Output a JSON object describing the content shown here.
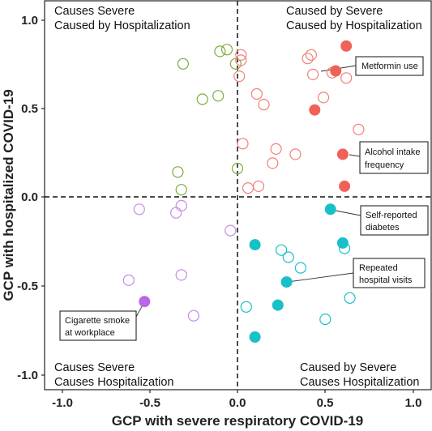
{
  "chart_data": {
    "type": "scatter",
    "xlabel": "GCP with severe respiratory COVID-19",
    "ylabel": "GCP with hospitalized COVID-19",
    "xlim": [
      -1.05,
      1.05
    ],
    "ylim": [
      -1.05,
      1.05
    ],
    "x_ticks": [
      "-1.0",
      "-0.5",
      "0.0",
      "0.5",
      "1.0"
    ],
    "y_ticks": [
      "1.0",
      "0.5",
      "0.0",
      "-0.5",
      "-1.0"
    ],
    "grid": false,
    "reference_lines": {
      "x": 0,
      "y": 0,
      "style": "dashed"
    },
    "quadrant_labels": [
      {
        "lines": [
          "Causes Severe",
          "Caused by Hospitalization"
        ],
        "position": "top-left"
      },
      {
        "lines": [
          "Caused by Severe",
          "Caused by Hospitalization"
        ],
        "position": "top-right"
      },
      {
        "lines": [
          "Causes Severe",
          "Causes Hospitalization"
        ],
        "position": "bottom-left"
      },
      {
        "lines": [
          "Caused by Severe",
          "Causes Hospitalization"
        ],
        "position": "bottom-right"
      }
    ],
    "colors": {
      "green": "#7dac3a",
      "salmon": "#f08078",
      "red": "#f06258",
      "cyan": "#18c0c8",
      "violet": "#c68ae6",
      "purple": "#bb66e6"
    },
    "series": [
      {
        "color": "green",
        "points": [
          {
            "x": -0.31,
            "y": 0.75,
            "filled": false
          },
          {
            "x": -0.1,
            "y": 0.82,
            "filled": false
          },
          {
            "x": -0.06,
            "y": 0.83,
            "filled": false
          },
          {
            "x": -0.01,
            "y": 0.75,
            "filled": false
          },
          {
            "x": -0.2,
            "y": 0.55,
            "filled": false
          },
          {
            "x": -0.11,
            "y": 0.57,
            "filled": false
          },
          {
            "x": -0.34,
            "y": 0.14,
            "filled": false
          },
          {
            "x": -0.32,
            "y": 0.04,
            "filled": false
          },
          {
            "x": 0.0,
            "y": 0.16,
            "filled": false
          }
        ]
      },
      {
        "color": "salmon",
        "points": [
          {
            "x": 0.02,
            "y": 0.8,
            "filled": false
          },
          {
            "x": 0.02,
            "y": 0.77,
            "filled": false
          },
          {
            "x": 0.01,
            "y": 0.68,
            "filled": false
          },
          {
            "x": 0.4,
            "y": 0.78,
            "filled": false
          },
          {
            "x": 0.42,
            "y": 0.8,
            "filled": false
          },
          {
            "x": 0.43,
            "y": 0.69,
            "filled": false
          },
          {
            "x": 0.54,
            "y": 0.7,
            "filled": false
          },
          {
            "x": 0.62,
            "y": 0.67,
            "filled": false
          },
          {
            "x": 0.11,
            "y": 0.58,
            "filled": false
          },
          {
            "x": 0.15,
            "y": 0.52,
            "filled": false
          },
          {
            "x": 0.49,
            "y": 0.56,
            "filled": false
          },
          {
            "x": 0.69,
            "y": 0.38,
            "filled": false
          },
          {
            "x": 0.03,
            "y": 0.3,
            "filled": false
          },
          {
            "x": 0.22,
            "y": 0.27,
            "filled": false
          },
          {
            "x": 0.33,
            "y": 0.24,
            "filled": false
          },
          {
            "x": 0.2,
            "y": 0.19,
            "filled": false
          },
          {
            "x": 0.06,
            "y": 0.05,
            "filled": false
          },
          {
            "x": 0.12,
            "y": 0.06,
            "filled": false
          }
        ]
      },
      {
        "color": "red",
        "points": [
          {
            "x": 0.62,
            "y": 0.85,
            "filled": true
          },
          {
            "x": 0.56,
            "y": 0.71,
            "filled": true,
            "label": "Metformin use"
          },
          {
            "x": 0.44,
            "y": 0.49,
            "filled": true
          },
          {
            "x": 0.6,
            "y": 0.24,
            "filled": true,
            "label": "Alcohol intake frequency"
          },
          {
            "x": 0.61,
            "y": 0.06,
            "filled": true
          }
        ]
      },
      {
        "color": "cyan",
        "points": [
          {
            "x": 0.53,
            "y": -0.07,
            "filled": true,
            "label": "Self-reported diabetes"
          },
          {
            "x": 0.6,
            "y": -0.26,
            "filled": true
          },
          {
            "x": 0.1,
            "y": -0.27,
            "filled": true
          },
          {
            "x": 0.28,
            "y": -0.48,
            "filled": true,
            "label": "Repeated hospital visits"
          },
          {
            "x": 0.23,
            "y": -0.61,
            "filled": true
          },
          {
            "x": 0.1,
            "y": -0.79,
            "filled": true
          },
          {
            "x": 0.61,
            "y": -0.29,
            "filled": false
          },
          {
            "x": 0.25,
            "y": -0.3,
            "filled": false
          },
          {
            "x": 0.29,
            "y": -0.34,
            "filled": false
          },
          {
            "x": 0.36,
            "y": -0.4,
            "filled": false
          },
          {
            "x": 0.64,
            "y": -0.57,
            "filled": false
          },
          {
            "x": 0.05,
            "y": -0.62,
            "filled": false
          },
          {
            "x": 0.5,
            "y": -0.69,
            "filled": false
          }
        ]
      },
      {
        "color": "violet",
        "points": [
          {
            "x": -0.56,
            "y": -0.07,
            "filled": false
          },
          {
            "x": -0.35,
            "y": -0.09,
            "filled": false
          },
          {
            "x": -0.32,
            "y": -0.05,
            "filled": false
          },
          {
            "x": -0.04,
            "y": -0.19,
            "filled": false
          },
          {
            "x": -0.62,
            "y": -0.47,
            "filled": false
          },
          {
            "x": -0.32,
            "y": -0.44,
            "filled": false
          },
          {
            "x": -0.25,
            "y": -0.67,
            "filled": false
          }
        ]
      },
      {
        "color": "purple",
        "points": [
          {
            "x": -0.53,
            "y": -0.59,
            "filled": true,
            "label": "Cigarette smoke at workplace"
          }
        ]
      }
    ],
    "annotations": [
      {
        "lines": [
          "Metformin use"
        ]
      },
      {
        "lines": [
          "Alcohol intake",
          "frequency"
        ]
      },
      {
        "lines": [
          "Self-reported",
          "diabetes"
        ]
      },
      {
        "lines": [
          "Repeated",
          "hospital visits"
        ]
      },
      {
        "lines": [
          "Cigarette smoke",
          "at workplace"
        ]
      }
    ]
  }
}
